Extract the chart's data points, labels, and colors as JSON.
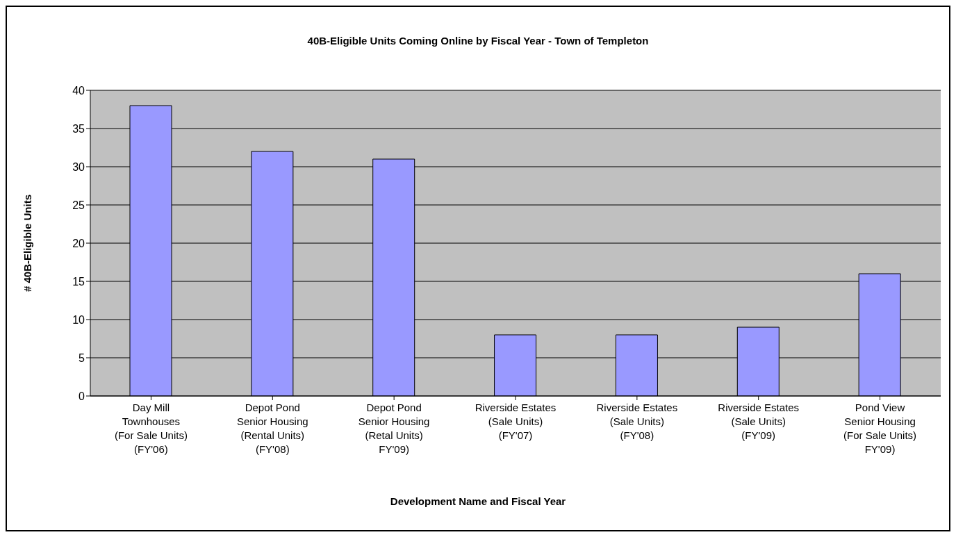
{
  "chart_data": {
    "type": "bar",
    "title": "40B-Eligible Units Coming Online by Fiscal Year - Town of Templeton",
    "xlabel": "Development Name and Fiscal Year",
    "ylabel": "# 40B-Eligible Units",
    "categories": [
      "Day Mill\nTownhouses\n(For Sale Units)\n(FY'06)",
      "Depot Pond\nSenior Housing\n(Rental Units)\n(FY'08)",
      "Depot Pond\nSenior Housing\n(Retal Units)\nFY'09)",
      "Riverside Estates\n(Sale Units)\n(FY'07)",
      "Riverside Estates\n(Sale Units)\n(FY'08)",
      "Riverside Estates\n(Sale Units)\n(FY'09)",
      "Pond View\nSenior Housing\n(For Sale Units)\nFY'09)"
    ],
    "values": [
      38,
      32,
      31,
      8,
      8,
      9,
      16
    ],
    "color": "#9999ff",
    "ylim": [
      0,
      40
    ],
    "yticks": [
      0,
      5,
      10,
      15,
      20,
      25,
      30,
      35,
      40
    ],
    "grid": "y"
  }
}
